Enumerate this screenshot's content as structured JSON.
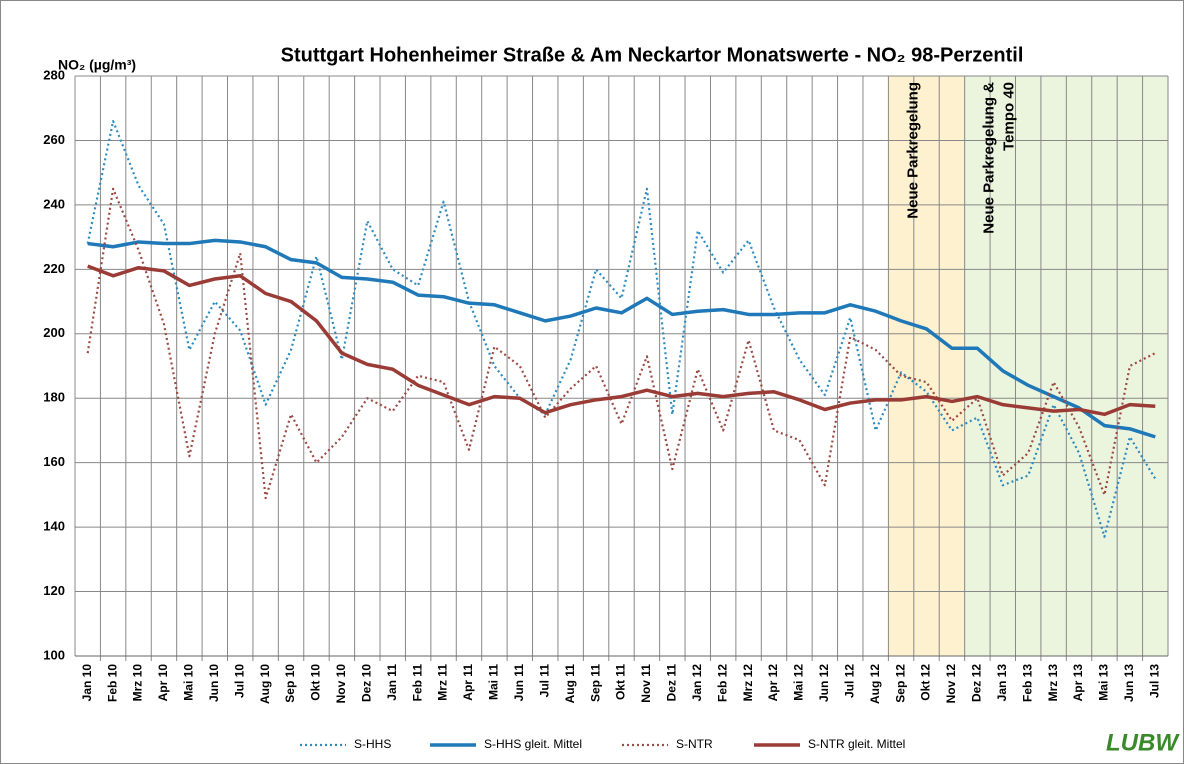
{
  "chart_data": {
    "type": "line",
    "title": "Stuttgart Hohenheimer Straße & Am Neckartor Monatswerte - NO₂ 98-Perzentil",
    "y_label": "NO₂ (µg/m³)",
    "logo": "LUBW",
    "categories": [
      "Jan 10",
      "Feb 10",
      "Mrz 10",
      "Apr 10",
      "Mai 10",
      "Jun 10",
      "Jul 10",
      "Aug 10",
      "Sep 10",
      "Okt 10",
      "Nov 10",
      "Dez 10",
      "Jan 11",
      "Feb 11",
      "Mrz 11",
      "Apr 11",
      "Mai 11",
      "Jun 11",
      "Jul 11",
      "Aug 11",
      "Sep 11",
      "Okt 11",
      "Nov 11",
      "Dez 11",
      "Jan 12",
      "Feb 12",
      "Mrz 12",
      "Apr 12",
      "Mai 12",
      "Jun 12",
      "Jul 12",
      "Aug 12",
      "Sep 12",
      "Okt 12",
      "Nov 12",
      "Dez 12",
      "Jan 13",
      "Feb 13",
      "Mrz 13",
      "Apr 13",
      "Mai 13",
      "Jun 13",
      "Jul 13"
    ],
    "series": [
      {
        "name": "S-HHS",
        "color": "#2e8bc0",
        "style": "dotted",
        "values": [
          228,
          266,
          246,
          234,
          195,
          210,
          201,
          178,
          195,
          224,
          192,
          235,
          220,
          215,
          241,
          210,
          190,
          180,
          175,
          192,
          220,
          211,
          245,
          175,
          232,
          219,
          229,
          208,
          192,
          181,
          205,
          170,
          188,
          182,
          170,
          174,
          153,
          156,
          178,
          163,
          137,
          168,
          155
        ]
      },
      {
        "name": "S-HHS gleit. Mittel",
        "color": "#1f78b8",
        "style": "solid",
        "values": [
          228,
          227,
          228.5,
          228,
          228,
          229,
          228.5,
          227,
          223,
          222,
          217.5,
          217,
          216,
          212,
          211.5,
          209.5,
          209,
          206.5,
          204,
          205.5,
          208,
          206.5,
          211,
          206,
          207,
          207.5,
          206,
          206,
          206.5,
          206.5,
          209,
          207,
          204,
          201.5,
          195.5,
          195.5,
          188.5,
          184,
          180.5,
          177,
          171.5,
          170.5,
          168
        ]
      },
      {
        "name": "S-NTR",
        "color": "#9b4a44",
        "style": "dotted",
        "values": [
          194,
          245,
          226,
          203,
          162,
          200,
          225,
          149,
          175,
          160,
          168,
          180,
          176,
          187,
          185,
          164,
          196,
          190,
          174,
          183,
          190,
          172,
          193,
          158,
          189,
          170,
          198,
          170,
          167,
          153,
          199,
          195,
          187,
          185,
          173,
          180,
          156,
          163,
          185,
          171,
          150,
          190,
          194
        ]
      },
      {
        "name": "S-NTR gleit. Mittel",
        "color": "#9a3b36",
        "style": "solid",
        "values": [
          221,
          218,
          220.5,
          219.5,
          215,
          217,
          218,
          212.5,
          210,
          204,
          194,
          190.5,
          189,
          184,
          181,
          178,
          180.5,
          180,
          175.5,
          178,
          179.5,
          180.5,
          182.5,
          180.5,
          181.5,
          180.5,
          181.5,
          182,
          179.5,
          176.5,
          178.5,
          179.5,
          179.5,
          180.5,
          179,
          180.5,
          178,
          177,
          176,
          176.5,
          175,
          178,
          177.5
        ]
      }
    ],
    "regions": [
      {
        "label": [
          "Neue Parkregelung"
        ],
        "start": "Sep 12",
        "end": "Nov 12",
        "color": "#fdf1cf"
      },
      {
        "label": [
          "Neue Parkregelung &",
          "Tempo 40"
        ],
        "start": "Dez 12",
        "end": "Jul 13",
        "color": "#ebf5de"
      }
    ],
    "ylim": [
      100,
      280
    ],
    "yticks": [
      100,
      120,
      140,
      160,
      180,
      200,
      220,
      240,
      260,
      280
    ],
    "grid": true,
    "legend": "bottom"
  }
}
